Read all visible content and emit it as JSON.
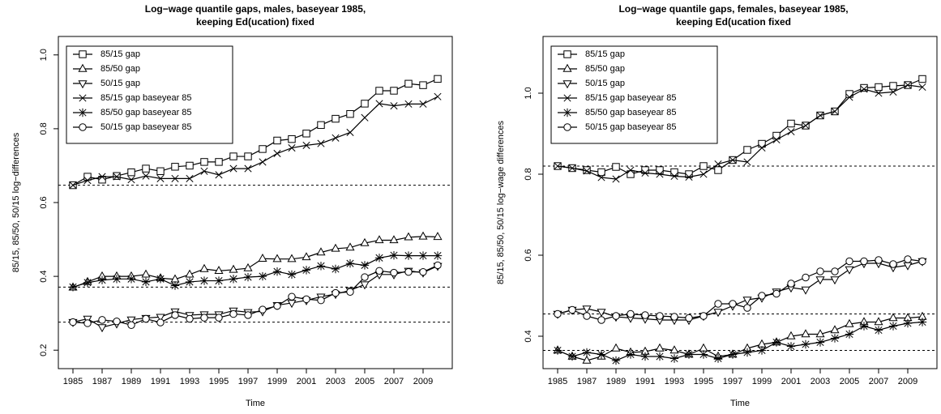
{
  "chart_data": [
    {
      "type": "line",
      "title": [
        "Log−wage quantile gaps, males, baseyear 1985,",
        "keeping Ed(ucation) fixed"
      ],
      "x_label": "Time",
      "y_label": "85/15, 85/50, 50/15 log−differences",
      "x": [
        1985,
        1986,
        1987,
        1988,
        1989,
        1990,
        1991,
        1992,
        1993,
        1994,
        1995,
        1996,
        1997,
        1998,
        1999,
        2000,
        2001,
        2002,
        2003,
        2004,
        2005,
        2006,
        2007,
        2008,
        2009,
        2010
      ],
      "xlim": [
        1984,
        2011
      ],
      "xticks": [
        1985,
        1987,
        1989,
        1991,
        1993,
        1995,
        1997,
        1999,
        2001,
        2003,
        2005,
        2007,
        2009
      ],
      "ylim": [
        0.15,
        1.05
      ],
      "yticks": [
        0.2,
        0.4,
        0.6,
        0.8,
        {
          "value": 1,
          "label": "1.0"
        }
      ],
      "reference_lines": [
        0.647,
        0.371,
        0.276
      ],
      "legend": "top-left",
      "series": [
        {
          "name": "85/15 gap",
          "color": "#000000",
          "marker": "square",
          "values": [
            0.647,
            0.67,
            0.662,
            0.672,
            0.682,
            0.692,
            0.685,
            0.697,
            0.7,
            0.71,
            0.71,
            0.725,
            0.725,
            0.745,
            0.768,
            0.772,
            0.787,
            0.81,
            0.827,
            0.84,
            0.868,
            0.903,
            0.903,
            0.922,
            0.918,
            0.935
          ]
        },
        {
          "name": "85/50 gap",
          "color": "#000000",
          "marker": "triangle-up",
          "values": [
            0.37,
            0.385,
            0.4,
            0.4,
            0.4,
            0.405,
            0.395,
            0.392,
            0.405,
            0.42,
            0.415,
            0.418,
            0.422,
            0.448,
            0.447,
            0.447,
            0.452,
            0.465,
            0.475,
            0.478,
            0.49,
            0.498,
            0.498,
            0.506,
            0.508,
            0.507
          ]
        },
        {
          "name": "50/15 gap",
          "color": "#000000",
          "marker": "triangle-down",
          "values": [
            0.276,
            0.285,
            0.262,
            0.272,
            0.283,
            0.287,
            0.29,
            0.305,
            0.295,
            0.297,
            0.297,
            0.307,
            0.303,
            0.305,
            0.322,
            0.328,
            0.335,
            0.345,
            0.352,
            0.362,
            0.378,
            0.405,
            0.405,
            0.415,
            0.41,
            0.428
          ]
        },
        {
          "name": "85/15 gap baseyear 85",
          "color": "#000000",
          "marker": "cross",
          "values": [
            0.647,
            0.66,
            0.67,
            0.67,
            0.662,
            0.672,
            0.665,
            0.665,
            0.665,
            0.685,
            0.675,
            0.692,
            0.692,
            0.71,
            0.733,
            0.748,
            0.755,
            0.76,
            0.775,
            0.79,
            0.83,
            0.868,
            0.862,
            0.867,
            0.867,
            0.887
          ]
        },
        {
          "name": "85/50 gap baseyear 85",
          "color": "#000000",
          "marker": "asterisk",
          "values": [
            0.371,
            0.383,
            0.39,
            0.393,
            0.393,
            0.385,
            0.393,
            0.375,
            0.385,
            0.388,
            0.388,
            0.393,
            0.398,
            0.4,
            0.413,
            0.405,
            0.417,
            0.428,
            0.42,
            0.435,
            0.43,
            0.45,
            0.457,
            0.456,
            0.456,
            0.456
          ]
        },
        {
          "name": "50/15 gap baseyear 85",
          "color": "#000000",
          "marker": "circle",
          "values": [
            0.276,
            0.273,
            0.282,
            0.278,
            0.268,
            0.285,
            0.275,
            0.295,
            0.285,
            0.288,
            0.288,
            0.298,
            0.295,
            0.31,
            0.32,
            0.345,
            0.338,
            0.335,
            0.355,
            0.358,
            0.398,
            0.415,
            0.41,
            0.412,
            0.412,
            0.43
          ]
        }
      ]
    },
    {
      "type": "line",
      "title": [
        "Log−wage quantile gaps, females, baseyear 1985,",
        "keeping Ed(ucation fixed"
      ],
      "x_label": "Time",
      "y_label": "85/15, 85/50, 50/15 log−wage differences",
      "x": [
        1985,
        1986,
        1987,
        1988,
        1989,
        1990,
        1991,
        1992,
        1993,
        1994,
        1995,
        1996,
        1997,
        1998,
        1999,
        2000,
        2001,
        2002,
        2003,
        2004,
        2005,
        2006,
        2007,
        2008,
        2009,
        2010
      ],
      "xlim": [
        1984,
        2011
      ],
      "xticks": [
        1985,
        1987,
        1989,
        1991,
        1993,
        1995,
        1997,
        1999,
        2001,
        2003,
        2005,
        2007,
        2009
      ],
      "ylim": [
        0.32,
        1.14
      ],
      "yticks": [
        0.4,
        0.6,
        0.8,
        {
          "value": 1,
          "label": "1.0"
        }
      ],
      "reference_lines": [
        0.82,
        0.455,
        0.365
      ],
      "legend": "top-left",
      "series": [
        {
          "name": "85/15 gap",
          "color": "#000000",
          "marker": "square",
          "values": [
            0.82,
            0.815,
            0.81,
            0.805,
            0.818,
            0.8,
            0.81,
            0.81,
            0.805,
            0.8,
            0.82,
            0.81,
            0.835,
            0.86,
            0.875,
            0.895,
            0.925,
            0.92,
            0.945,
            0.955,
            0.998,
            1.013,
            1.015,
            1.018,
            1.02,
            1.035
          ]
        },
        {
          "name": "85/50 gap",
          "color": "#000000",
          "marker": "triangle-up",
          "values": [
            0.365,
            0.35,
            0.34,
            0.35,
            0.37,
            0.36,
            0.362,
            0.37,
            0.365,
            0.355,
            0.37,
            0.35,
            0.355,
            0.37,
            0.38,
            0.385,
            0.4,
            0.405,
            0.405,
            0.415,
            0.43,
            0.435,
            0.435,
            0.445,
            0.445,
            0.448
          ]
        },
        {
          "name": "50/15 gap",
          "color": "#000000",
          "marker": "triangle-down",
          "values": [
            0.455,
            0.465,
            0.468,
            0.46,
            0.448,
            0.445,
            0.443,
            0.44,
            0.44,
            0.44,
            0.45,
            0.46,
            0.475,
            0.49,
            0.495,
            0.51,
            0.52,
            0.515,
            0.54,
            0.54,
            0.565,
            0.58,
            0.58,
            0.57,
            0.575,
            0.585
          ]
        },
        {
          "name": "85/15 gap baseyear 85",
          "color": "#000000",
          "marker": "cross",
          "values": [
            0.82,
            0.815,
            0.808,
            0.792,
            0.788,
            0.81,
            0.803,
            0.8,
            0.795,
            0.793,
            0.8,
            0.825,
            0.835,
            0.83,
            0.865,
            0.885,
            0.905,
            0.92,
            0.945,
            0.955,
            0.99,
            1.01,
            1.0,
            1.003,
            1.02,
            1.015
          ]
        },
        {
          "name": "85/50 gap baseyear 85",
          "color": "#000000",
          "marker": "asterisk",
          "values": [
            0.365,
            0.35,
            0.36,
            0.355,
            0.34,
            0.355,
            0.35,
            0.35,
            0.345,
            0.355,
            0.355,
            0.345,
            0.355,
            0.36,
            0.365,
            0.385,
            0.375,
            0.38,
            0.385,
            0.395,
            0.405,
            0.425,
            0.415,
            0.425,
            0.432,
            0.435
          ]
        },
        {
          "name": "50/15 gap baseyear 85",
          "color": "#000000",
          "marker": "circle",
          "values": [
            0.455,
            0.465,
            0.45,
            0.44,
            0.45,
            0.455,
            0.452,
            0.45,
            0.448,
            0.445,
            0.45,
            0.48,
            0.48,
            0.47,
            0.5,
            0.505,
            0.53,
            0.545,
            0.56,
            0.56,
            0.585,
            0.585,
            0.588,
            0.578,
            0.59,
            0.585
          ]
        }
      ]
    }
  ]
}
